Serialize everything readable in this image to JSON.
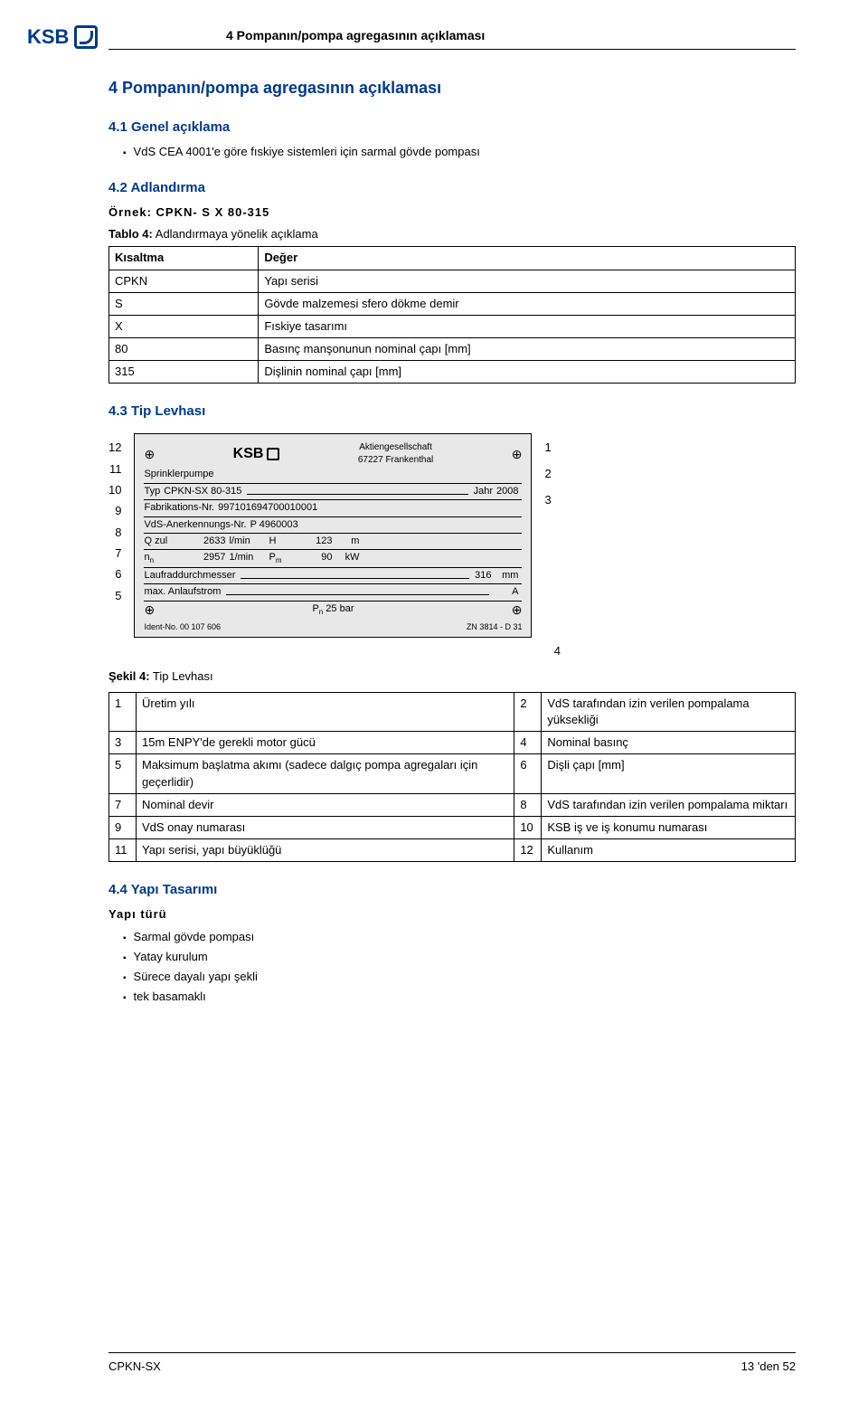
{
  "header": {
    "logo_text": "KSB",
    "title": "4 Pompanın/pompa agregasının açıklaması"
  },
  "section_main": "4 Pompanın/pompa agregasının açıklaması",
  "sec_4_1": {
    "heading": "4.1 Genel açıklama",
    "bullet": "VdS CEA 4001'e göre fıskiye sistemleri için sarmal gövde pompası"
  },
  "sec_4_2": {
    "heading": "4.2 Adlandırma",
    "example_label": "Örnek: CPKN- S X 80-315",
    "table_caption_prefix": "Tablo 4:",
    "table_caption_text": " Adlandırmaya yönelik açıklama",
    "columns": [
      "Kısaltma",
      "Değer"
    ],
    "rows": [
      [
        "CPKN",
        "Yapı serisi"
      ],
      [
        "S",
        "Gövde malzemesi sfero dökme demir"
      ],
      [
        "X",
        "Fıskiye tasarımı"
      ],
      [
        "80",
        "Basınç manşonunun nominal çapı [mm]"
      ],
      [
        "315",
        "Dişlinin nominal çapı [mm]"
      ]
    ]
  },
  "sec_4_3": {
    "heading": "4.3 Tip Levhası",
    "left_callouts": [
      "12",
      "11",
      "10",
      "9",
      "8",
      "7",
      "6",
      "5"
    ],
    "right_callouts": [
      "1",
      "2",
      "3"
    ],
    "bottom_callout": "4",
    "nameplate": {
      "brand": "KSB",
      "company": "Aktiengesellschaft",
      "city": "67227 Frankenthal",
      "line1": "Sprinklerpumpe",
      "typ_label": "Typ",
      "typ_value": "CPKN-SX 80-315",
      "jahr_label": "Jahr",
      "jahr_value": "2008",
      "fab_label": "Fabrikations-Nr.",
      "fab_value": "997101694700010001",
      "vds_label": "VdS-Anerkennungs-Nr.",
      "vds_value": "P 4960003",
      "q_label": "Q zul",
      "q_value": "2633",
      "q_unit": "l/min",
      "h_label": "H",
      "h_value": "123",
      "h_unit": "m",
      "n_label": "nn",
      "n_value": "2957",
      "n_unit": "1/min",
      "pm_label": "Pm",
      "pm_value": "90",
      "pm_unit": "kW",
      "lauf_label": "Laufraddurchmesser",
      "lauf_value": "316",
      "lauf_unit": "mm",
      "anlauf_label": "max. Anlaufstrom",
      "anlauf_unit": "A",
      "pn_label": "Pn 25 bar",
      "ident_label": "Ident-No. 00 107 606",
      "zn_label": "ZN 3814 - D 31"
    },
    "fig_caption_prefix": "Şekil 4:",
    "fig_caption_text": " Tip Levhası",
    "legend_rows": [
      [
        "1",
        "Üretim yılı",
        "2",
        "VdS tarafından izin verilen pompalama yüksekliği"
      ],
      [
        "3",
        "15m ENPY'de gerekli motor gücü",
        "4",
        "Nominal basınç"
      ],
      [
        "5",
        "Maksimum başlatma akımı (sadece dalgıç pompa agregaları için geçerlidir)",
        "6",
        "Dişli çapı [mm]"
      ],
      [
        "7",
        "Nominal devir",
        "8",
        "VdS tarafından izin verilen pompalama miktarı"
      ],
      [
        "9",
        "VdS onay numarası",
        "10",
        "KSB iş ve iş konumu numarası"
      ],
      [
        "11",
        "Yapı serisi, yapı büyüklüğü",
        "12",
        "Kullanım"
      ]
    ]
  },
  "sec_4_4": {
    "heading": "4.4 Yapı Tasarımı",
    "sub_label": "Yapı türü",
    "bullets": [
      "Sarmal gövde pompası",
      "Yatay kurulum",
      "Sürece dayalı yapı şekli",
      "tek basamaklı"
    ]
  },
  "footer": {
    "left": "CPKN-SX",
    "right": "13 'den 52"
  },
  "colors": {
    "accent": "#003a8c",
    "plate_bg": "#e8e8e8",
    "border": "#000000",
    "background": "#ffffff"
  }
}
